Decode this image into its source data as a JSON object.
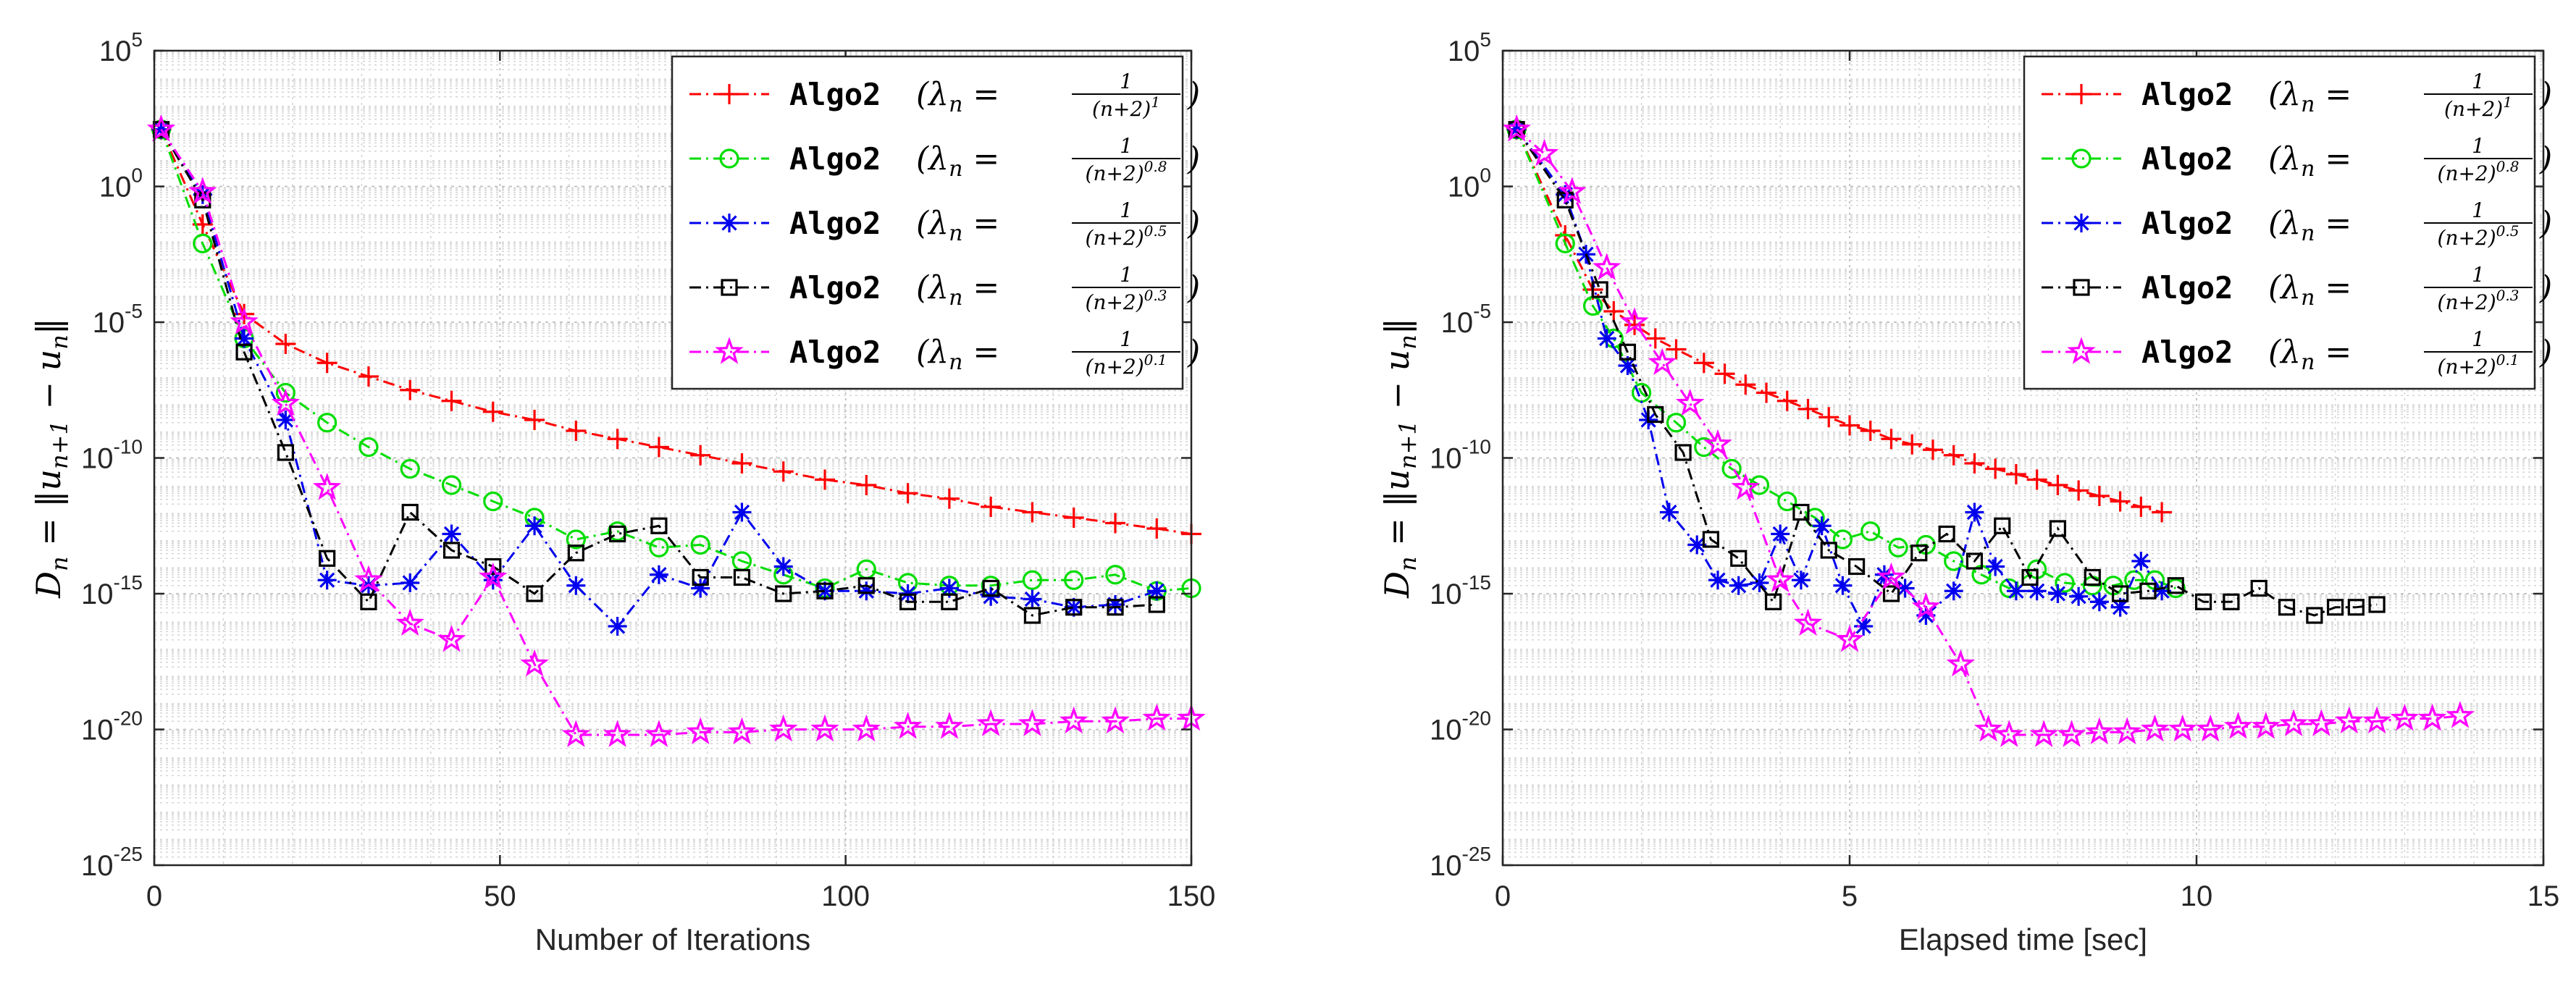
{
  "chart_data": [
    {
      "type": "line",
      "name": "iterations",
      "xlabel": "Number of Iterations",
      "ylabel": "D_n = ||u_{n+1} − u_n||",
      "ylabel_parts": {
        "var": "D",
        "sub": "n",
        "norm_open": "= ‖u",
        "sub2": "n+1",
        "minus": " − u",
        "sub3": "n",
        "norm_close": "‖"
      },
      "xlim": [
        0,
        150
      ],
      "ylim_exp": [
        -25,
        5
      ],
      "x_ticks": [
        0,
        50,
        100,
        150
      ],
      "y_ticks_exp": [
        -25,
        -20,
        -15,
        -10,
        -5,
        0,
        5
      ],
      "yscale": "log",
      "grid": true,
      "legend_position": "top-right",
      "series": [
        {
          "name": "Algo2",
          "lambda_label": "λn = 1/(n+2)^1",
          "exponent": "1",
          "color": "#ff0000",
          "marker": "plus",
          "x": [
            1,
            7,
            13,
            19,
            25,
            31,
            37,
            43,
            49,
            55,
            61,
            67,
            73,
            79,
            85,
            91,
            97,
            103,
            109,
            115,
            121,
            127,
            133,
            139,
            145,
            150
          ],
          "logy": [
            2.1,
            -1.4,
            -4.7,
            -5.8,
            -6.5,
            -7.0,
            -7.5,
            -7.9,
            -8.3,
            -8.6,
            -9.0,
            -9.3,
            -9.6,
            -9.9,
            -10.2,
            -10.5,
            -10.8,
            -11.0,
            -11.3,
            -11.5,
            -11.8,
            -12.0,
            -12.2,
            -12.4,
            -12.6,
            -12.8
          ]
        },
        {
          "name": "Algo2",
          "lambda_label": "λn = 1/(n+2)^0.8",
          "exponent": "0.8",
          "color": "#00dd00",
          "marker": "circle",
          "x": [
            1,
            7,
            13,
            19,
            25,
            31,
            37,
            43,
            49,
            55,
            61,
            67,
            73,
            79,
            85,
            91,
            97,
            103,
            109,
            115,
            121,
            127,
            133,
            139,
            145,
            150
          ],
          "logy": [
            2.1,
            -2.1,
            -5.6,
            -7.6,
            -8.7,
            -9.6,
            -10.4,
            -11.0,
            -11.6,
            -12.2,
            -13.0,
            -12.7,
            -13.3,
            -13.2,
            -13.8,
            -14.3,
            -14.8,
            -14.1,
            -14.6,
            -14.7,
            -14.7,
            -14.5,
            -14.5,
            -14.3,
            -14.9,
            -14.8
          ]
        },
        {
          "name": "Algo2",
          "lambda_label": "λn = 1/(n+2)^0.5",
          "exponent": "0.5",
          "color": "#0000ee",
          "marker": "asterisk",
          "x": [
            1,
            7,
            13,
            19,
            25,
            31,
            37,
            43,
            49,
            55,
            61,
            67,
            73,
            79,
            85,
            91,
            97,
            103,
            109,
            115,
            121,
            127,
            133,
            139,
            145
          ],
          "logy": [
            2.1,
            -0.3,
            -5.6,
            -8.6,
            -14.5,
            -14.7,
            -14.6,
            -12.8,
            -14.5,
            -12.5,
            -14.7,
            -16.2,
            -14.3,
            -14.8,
            -12.0,
            -14.0,
            -14.9,
            -14.9,
            -15.0,
            -14.8,
            -15.1,
            -15.2,
            -15.5,
            -15.4,
            -14.9
          ]
        },
        {
          "name": "Algo2",
          "lambda_label": "λn = 1/(n+2)^0.3",
          "exponent": "0.3",
          "color": "#000000",
          "marker": "square",
          "x": [
            1,
            7,
            13,
            19,
            25,
            31,
            37,
            43,
            49,
            55,
            61,
            67,
            73,
            79,
            85,
            91,
            97,
            103,
            109,
            115,
            121,
            127,
            133,
            139,
            145
          ],
          "logy": [
            2.1,
            -0.5,
            -6.1,
            -9.8,
            -13.7,
            -15.3,
            -12.0,
            -13.4,
            -14.0,
            -15.0,
            -13.5,
            -12.8,
            -12.5,
            -14.4,
            -14.4,
            -15.0,
            -14.9,
            -14.7,
            -15.3,
            -15.3,
            -14.8,
            -15.8,
            -15.5,
            -15.5,
            -15.4
          ]
        },
        {
          "name": "Algo2",
          "lambda_label": "λn = 1/(n+2)^0.1",
          "exponent": "0.1",
          "color": "#ff00ff",
          "marker": "star",
          "x": [
            1,
            7,
            13,
            19,
            25,
            31,
            37,
            43,
            49,
            55,
            61,
            67,
            73,
            79,
            85,
            91,
            97,
            103,
            109,
            115,
            121,
            127,
            133,
            139,
            145,
            150
          ],
          "logy": [
            2.1,
            -0.2,
            -5.0,
            -8.0,
            -11.1,
            -14.5,
            -16.1,
            -16.7,
            -14.4,
            -17.6,
            -20.2,
            -20.2,
            -20.2,
            -20.1,
            -20.1,
            -20.0,
            -20.0,
            -20.0,
            -19.9,
            -19.9,
            -19.8,
            -19.8,
            -19.7,
            -19.7,
            -19.6,
            -19.6
          ]
        }
      ]
    },
    {
      "type": "line",
      "name": "time",
      "xlabel": "Elapsed time [sec]",
      "ylabel": "D_n = ||u_{n+1} − u_n||",
      "ylabel_parts": {
        "var": "D",
        "sub": "n",
        "norm_open": "= ‖u",
        "sub2": "n+1",
        "minus": " − u",
        "sub3": "n",
        "norm_close": "‖"
      },
      "xlim": [
        0,
        15
      ],
      "ylim_exp": [
        -25,
        5
      ],
      "x_ticks": [
        0,
        5,
        10,
        15
      ],
      "y_ticks_exp": [
        -25,
        -20,
        -15,
        -10,
        -5,
        0,
        5
      ],
      "yscale": "log",
      "grid": true,
      "legend_position": "top-right",
      "series": [
        {
          "name": "Algo2",
          "lambda_label": "λn = 1/(n+2)^1",
          "exponent": "1",
          "color": "#ff0000",
          "marker": "plus",
          "x": [
            0.2,
            0.9,
            1.3,
            1.6,
            1.9,
            2.2,
            2.5,
            2.9,
            3.2,
            3.5,
            3.8,
            4.1,
            4.4,
            4.7,
            5.0,
            5.3,
            5.6,
            5.9,
            6.2,
            6.5,
            6.8,
            7.1,
            7.4,
            7.7,
            8.0,
            8.3,
            8.6,
            8.9,
            9.2,
            9.5
          ],
          "logy": [
            2.1,
            -1.8,
            -3.8,
            -4.6,
            -5.1,
            -5.6,
            -6.0,
            -6.5,
            -6.9,
            -7.3,
            -7.6,
            -7.9,
            -8.2,
            -8.5,
            -8.8,
            -9.0,
            -9.3,
            -9.5,
            -9.7,
            -9.9,
            -10.2,
            -10.4,
            -10.6,
            -10.8,
            -11.0,
            -11.2,
            -11.4,
            -11.6,
            -11.8,
            -12.0
          ]
        },
        {
          "name": "Algo2",
          "lambda_label": "λn = 1/(n+2)^0.8",
          "exponent": "0.8",
          "color": "#00dd00",
          "marker": "circle",
          "x": [
            0.2,
            0.9,
            1.3,
            1.6,
            2.0,
            2.5,
            2.9,
            3.3,
            3.7,
            4.1,
            4.5,
            4.9,
            5.3,
            5.7,
            6.1,
            6.5,
            6.9,
            7.3,
            7.7,
            8.1,
            8.5,
            8.8,
            9.1,
            9.4,
            9.7
          ],
          "logy": [
            2.1,
            -2.1,
            -4.4,
            -5.6,
            -7.6,
            -8.7,
            -9.6,
            -10.4,
            -11.0,
            -11.6,
            -12.2,
            -13.0,
            -12.7,
            -13.3,
            -13.2,
            -13.8,
            -14.3,
            -14.8,
            -14.1,
            -14.6,
            -14.7,
            -14.7,
            -14.5,
            -14.5,
            -14.8
          ]
        },
        {
          "name": "Algo2",
          "lambda_label": "λn = 1/(n+2)^0.5",
          "exponent": "0.5",
          "color": "#0000ee",
          "marker": "asterisk",
          "x": [
            0.2,
            0.9,
            1.2,
            1.5,
            1.8,
            2.1,
            2.4,
            2.8,
            3.1,
            3.4,
            3.7,
            4.0,
            4.3,
            4.6,
            4.9,
            5.2,
            5.5,
            5.8,
            6.1,
            6.5,
            6.8,
            7.1,
            7.4,
            7.7,
            8.0,
            8.3,
            8.6,
            8.9,
            9.2,
            9.5
          ],
          "logy": [
            2.1,
            -0.3,
            -2.5,
            -5.6,
            -6.6,
            -8.6,
            -12.0,
            -13.2,
            -14.5,
            -14.7,
            -14.6,
            -12.8,
            -14.5,
            -12.5,
            -14.7,
            -16.2,
            -14.3,
            -14.8,
            -15.8,
            -14.9,
            -12.0,
            -14.0,
            -14.9,
            -14.9,
            -15.0,
            -15.1,
            -15.3,
            -15.5,
            -13.8,
            -14.9
          ]
        },
        {
          "name": "Algo2",
          "lambda_label": "λn = 1/(n+2)^0.3",
          "exponent": "0.3",
          "color": "#000000",
          "marker": "square",
          "x": [
            0.2,
            0.9,
            1.4,
            1.8,
            2.2,
            2.6,
            3.0,
            3.4,
            3.9,
            4.3,
            4.7,
            5.1,
            5.6,
            6.0,
            6.4,
            6.8,
            7.2,
            7.6,
            8.0,
            8.5,
            8.9,
            9.3,
            9.7,
            10.1,
            10.5,
            10.9,
            11.3,
            11.7,
            12.0,
            12.3,
            12.6
          ],
          "logy": [
            2.1,
            -0.5,
            -3.8,
            -6.1,
            -8.4,
            -9.8,
            -13.0,
            -13.7,
            -15.3,
            -12.0,
            -13.4,
            -14.0,
            -15.0,
            -13.5,
            -12.8,
            -13.8,
            -12.5,
            -14.4,
            -12.6,
            -14.4,
            -15.0,
            -14.9,
            -14.7,
            -15.3,
            -15.3,
            -14.8,
            -15.5,
            -15.8,
            -15.5,
            -15.5,
            -15.4
          ]
        },
        {
          "name": "Algo2",
          "lambda_label": "λn = 1/(n+2)^0.1",
          "exponent": "0.1",
          "color": "#ff00ff",
          "marker": "star",
          "x": [
            0.2,
            0.6,
            1.0,
            1.5,
            1.9,
            2.3,
            2.7,
            3.1,
            3.5,
            4.0,
            4.4,
            5.0,
            5.6,
            6.1,
            6.6,
            7.0,
            7.3,
            7.8,
            8.2,
            8.6,
            9.0,
            9.4,
            9.8,
            10.2,
            10.6,
            11.0,
            11.4,
            11.8,
            12.2,
            12.6,
            13.0,
            13.4,
            13.8
          ],
          "logy": [
            2.1,
            1.2,
            -0.2,
            -3.0,
            -5.0,
            -6.5,
            -8.0,
            -9.5,
            -11.1,
            -14.5,
            -16.1,
            -16.7,
            -14.4,
            -15.5,
            -17.6,
            -20.0,
            -20.2,
            -20.2,
            -20.2,
            -20.1,
            -20.1,
            -20.0,
            -20.0,
            -20.0,
            -19.9,
            -19.9,
            -19.8,
            -19.8,
            -19.7,
            -19.7,
            -19.6,
            -19.6,
            -19.5
          ]
        }
      ]
    }
  ],
  "tick_base": "10"
}
